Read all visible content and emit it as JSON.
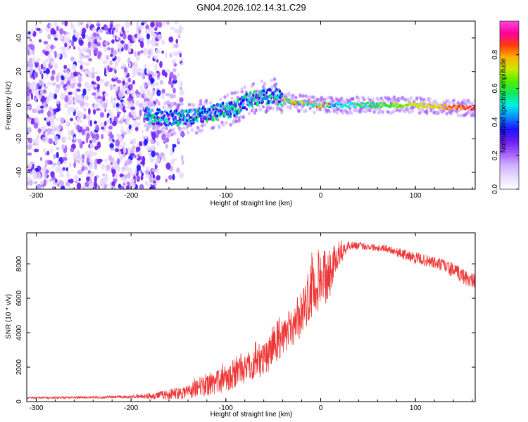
{
  "figure_title": "GN04.2026.102.14.31.C29",
  "chart_data": [
    {
      "type": "heatmap",
      "xlabel": "Height of straight line (km)",
      "ylabel": "Frequency (Hz)",
      "xlim": [
        -310,
        163
      ],
      "ylim": [
        -50,
        50
      ],
      "x_ticks": [
        -300,
        -200,
        -100,
        0,
        100
      ],
      "y_ticks": [
        -40,
        -20,
        0,
        20,
        40
      ],
      "colorbar": {
        "label": "Normalized spectral amplitude",
        "range": [
          0.0,
          1.0
        ],
        "ticks": [
          0.0,
          0.2,
          0.4,
          0.6,
          0.8
        ],
        "colormap": [
          "#ffffff",
          "#e9dcff",
          "#cfb0ff",
          "#a25cff",
          "#6a1cf0",
          "#1a14ff",
          "#0a8cff",
          "#00f0e6",
          "#11e85a",
          "#55ee00",
          "#c8ea00",
          "#ffb000",
          "#ff3a10",
          "#ff00a0",
          "#ff4ad8"
        ]
      },
      "features": {
        "noise_region_x": [
          -310,
          -145
        ],
        "signal_track": [
          [
            -185,
            -6
          ],
          [
            -160,
            -8
          ],
          [
            -130,
            -7
          ],
          [
            -110,
            -4
          ],
          [
            -90,
            -2
          ],
          [
            -75,
            3
          ],
          [
            -60,
            5
          ],
          [
            -48,
            6
          ],
          [
            -40,
            3
          ],
          [
            -20,
            1
          ],
          [
            0,
            0
          ],
          [
            50,
            0
          ],
          [
            100,
            0
          ],
          [
            163,
            -2
          ]
        ]
      }
    },
    {
      "type": "line",
      "xlabel": "Height of straight line (km)",
      "ylabel": "SNR (10 * v/v)",
      "xlim": [
        -310,
        163
      ],
      "ylim": [
        0,
        9800
      ],
      "x_ticks": [
        -300,
        -200,
        -100,
        0,
        100
      ],
      "y_ticks": [
        0,
        2000,
        4000,
        6000,
        8000
      ],
      "series": [
        {
          "name": "SNR",
          "color": "#ee3333",
          "x": [
            -310,
            -250,
            -200,
            -180,
            -160,
            -140,
            -120,
            -100,
            -80,
            -60,
            -40,
            -20,
            -10,
            0,
            10,
            20,
            30,
            50,
            70,
            90,
            110,
            130,
            150,
            163
          ],
          "y": [
            220,
            240,
            270,
            330,
            420,
            600,
            900,
            1350,
            1900,
            2500,
            3600,
            5100,
            6600,
            6700,
            7300,
            8500,
            9100,
            9000,
            8900,
            8500,
            8200,
            7900,
            7300,
            6900
          ],
          "noise_amplitude": [
            60,
            70,
            80,
            180,
            300,
            450,
            600,
            800,
            900,
            1000,
            1100,
            1300,
            1700,
            1500,
            1200,
            600,
            250,
            200,
            220,
            300,
            350,
            400,
            450,
            500
          ]
        }
      ]
    }
  ]
}
